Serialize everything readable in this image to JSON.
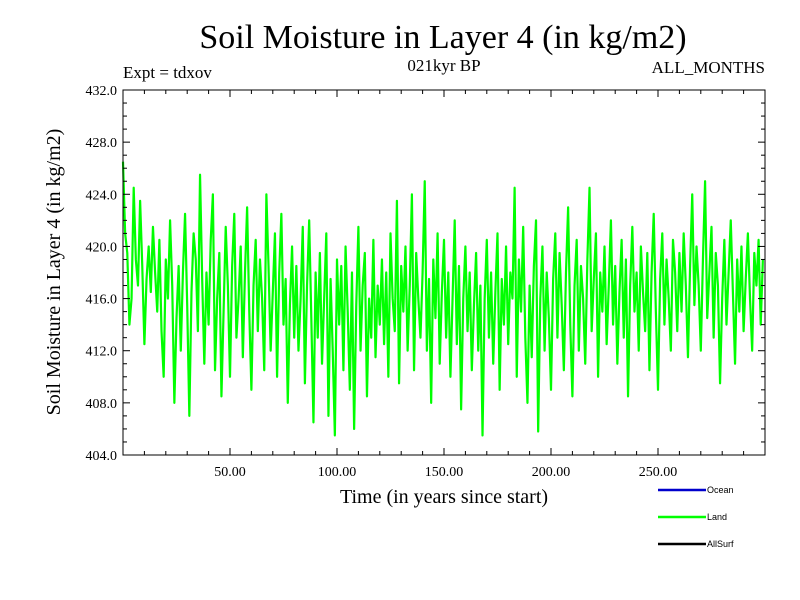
{
  "chart_data": {
    "type": "line",
    "title": "Soil Moisture in Layer 4 (in kg/m2)",
    "subtitle": "021kyr BP",
    "left_label": "Expt = tdxov",
    "right_label": "ALL_MONTHS",
    "xlabel": "Time (in years since start)",
    "ylabel": "Soil Moisture in Layer 4 (in kg/m2)",
    "xlim": [
      0,
      300
    ],
    "ylim": [
      404.0,
      432.0
    ],
    "x_ticks": [
      50,
      100,
      150,
      200,
      250
    ],
    "x_tick_labels": [
      "50.00",
      "100.00",
      "150.00",
      "200.00",
      "250.00"
    ],
    "y_ticks": [
      404,
      408,
      412,
      416,
      420,
      424,
      428,
      432
    ],
    "y_tick_labels": [
      "404.0",
      "408.0",
      "412.0",
      "416.0",
      "420.0",
      "424.0",
      "428.0",
      "432.0"
    ],
    "grid": false,
    "legend_position": "bottom-right",
    "series": [
      {
        "name": "Ocean",
        "color": "#0000cc",
        "values": []
      },
      {
        "name": "Land",
        "color": "#00ff00",
        "x_start": 0,
        "x_step": 1,
        "values": [
          426.5,
          421.0,
          419.5,
          414.0,
          416.0,
          424.5,
          419.0,
          417.0,
          423.5,
          418.5,
          412.5,
          417.5,
          420.0,
          416.5,
          421.5,
          418.0,
          415.0,
          420.5,
          413.5,
          410.0,
          419.0,
          416.0,
          422.0,
          417.0,
          408.0,
          414.5,
          418.5,
          412.0,
          418.0,
          422.5,
          415.5,
          407.0,
          416.5,
          421.0,
          419.0,
          413.5,
          425.5,
          417.5,
          411.0,
          418.0,
          414.0,
          420.5,
          424.0,
          410.5,
          416.0,
          419.5,
          408.5,
          415.0,
          421.5,
          417.0,
          410.0,
          418.5,
          422.5,
          413.0,
          416.0,
          420.0,
          411.5,
          418.0,
          423.0,
          415.0,
          409.0,
          417.0,
          420.5,
          413.5,
          419.0,
          416.0,
          410.5,
          424.0,
          418.5,
          412.0,
          416.5,
          421.0,
          410.0,
          418.0,
          422.5,
          414.0,
          417.5,
          408.0,
          415.5,
          420.0,
          413.0,
          418.5,
          412.0,
          416.0,
          421.5,
          409.5,
          417.0,
          422.0,
          414.5,
          406.5,
          418.0,
          413.0,
          419.5,
          411.0,
          416.0,
          421.0,
          407.0,
          417.5,
          412.0,
          405.5,
          419.0,
          414.0,
          418.5,
          410.5,
          420.0,
          415.0,
          409.0,
          418.0,
          406.0,
          415.5,
          421.5,
          412.0,
          417.0,
          419.5,
          408.5,
          416.0,
          413.0,
          420.5,
          411.5,
          417.0,
          414.0,
          419.0,
          412.5,
          418.0,
          410.0,
          421.0,
          416.0,
          413.5,
          423.5,
          409.5,
          418.5,
          415.0,
          420.0,
          412.0,
          417.0,
          424.0,
          410.5,
          419.5,
          416.0,
          413.0,
          418.0,
          425.0,
          412.0,
          417.5,
          408.0,
          419.0,
          414.5,
          421.0,
          411.0,
          416.5,
          420.5,
          413.0,
          418.0,
          410.0,
          416.0,
          422.0,
          412.5,
          418.5,
          407.5,
          416.0,
          420.0,
          413.5,
          418.0,
          410.5,
          415.5,
          419.5,
          412.0,
          417.0,
          405.5,
          416.0,
          420.5,
          413.0,
          418.0,
          411.0,
          416.5,
          421.0,
          409.0,
          417.5,
          414.0,
          420.0,
          412.5,
          418.0,
          416.0,
          424.5,
          410.0,
          419.0,
          415.0,
          421.5,
          413.0,
          408.0,
          417.0,
          411.5,
          418.5,
          422.0,
          405.8,
          416.0,
          420.0,
          412.0,
          418.0,
          414.5,
          409.0,
          417.5,
          421.0,
          413.0,
          419.5,
          415.5,
          410.5,
          418.0,
          423.0,
          414.0,
          408.5,
          417.0,
          420.5,
          412.0,
          418.5,
          416.0,
          411.0,
          419.0,
          424.5,
          413.5,
          417.5,
          421.0,
          410.0,
          418.0,
          415.0,
          420.0,
          412.5,
          417.0,
          422.0,
          414.0,
          418.5,
          411.0,
          416.5,
          420.5,
          413.0,
          419.0,
          408.5,
          417.0,
          421.5,
          415.0,
          418.0,
          412.0,
          420.0,
          416.5,
          413.5,
          419.5,
          410.5,
          418.0,
          422.5,
          415.0,
          409.0,
          417.5,
          421.0,
          414.0,
          419.0,
          416.0,
          412.0,
          420.5,
          418.0,
          413.5,
          419.5,
          415.0,
          421.0,
          417.0,
          411.5,
          418.5,
          424.0,
          415.5,
          420.0,
          417.0,
          412.0,
          419.0,
          425.0,
          414.5,
          418.0,
          421.5,
          413.0,
          419.5,
          417.0,
          409.5,
          416.0,
          420.5,
          414.0,
          418.0,
          422.0,
          416.5,
          411.0,
          419.0,
          415.0,
          420.0,
          413.5,
          417.5,
          421.0,
          416.0,
          412.0,
          419.5,
          417.0,
          420.5,
          414.0,
          419.0
        ]
      },
      {
        "name": "AllSurf",
        "color": "#000000",
        "values": []
      }
    ]
  }
}
